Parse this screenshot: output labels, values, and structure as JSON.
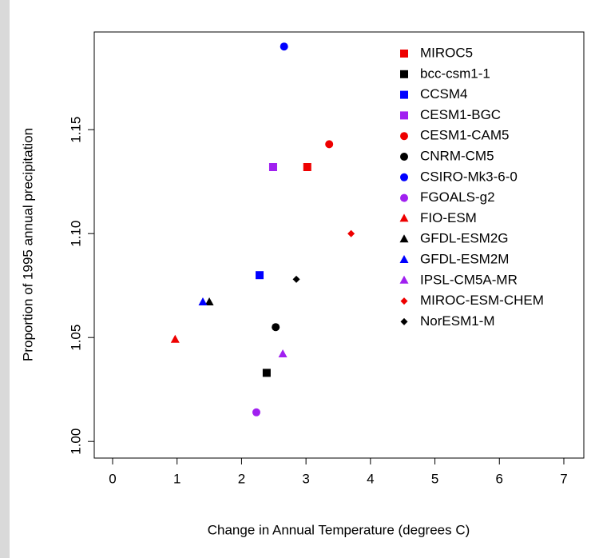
{
  "chart_data": {
    "type": "scatter",
    "x_label": "Change in Annual Temperature (degrees C)",
    "y_label": "Proportion of 1995 annual precipitation",
    "xlim": [
      -0.285,
      7.31
    ],
    "ylim": [
      0.992,
      1.197
    ],
    "xticks": [
      0,
      1,
      2,
      3,
      4,
      5,
      6,
      7
    ],
    "yticks": [
      {
        "value": 1,
        "label": "1.00"
      },
      1.05,
      {
        "value": 1.1,
        "label": "1.10"
      },
      1.15
    ],
    "legend": "top-right",
    "series": [
      {
        "name": "MIROC5",
        "color": "#ee0000",
        "marker": "square",
        "x": [
          3.02
        ],
        "values": [
          1.132
        ]
      },
      {
        "name": "bcc-csm1-1",
        "color": "#000000",
        "marker": "square",
        "x": [
          2.39
        ],
        "values": [
          1.033
        ]
      },
      {
        "name": "CCSM4",
        "color": "#0000ff",
        "marker": "square",
        "x": [
          2.28
        ],
        "values": [
          1.08
        ]
      },
      {
        "name": "CESM1-BGC",
        "color": "#a020f0",
        "marker": "square",
        "x": [
          2.49
        ],
        "values": [
          1.132
        ]
      },
      {
        "name": "CESM1-CAM5",
        "color": "#ee0000",
        "marker": "circle",
        "x": [
          3.36
        ],
        "values": [
          1.143
        ]
      },
      {
        "name": "CNRM-CM5",
        "color": "#000000",
        "marker": "circle",
        "x": [
          2.53
        ],
        "values": [
          1.055
        ]
      },
      {
        "name": "CSIRO-Mk3-6-0",
        "color": "#0000ff",
        "marker": "circle",
        "x": [
          2.66
        ],
        "values": [
          1.19
        ]
      },
      {
        "name": "FGOALS-g2",
        "color": "#a020f0",
        "marker": "circle",
        "x": [
          2.23
        ],
        "values": [
          1.014
        ]
      },
      {
        "name": "FIO-ESM",
        "color": "#ee0000",
        "marker": "triangle",
        "x": [
          0.97
        ],
        "values": [
          1.049
        ]
      },
      {
        "name": "GFDL-ESM2G",
        "color": "#000000",
        "marker": "triangle",
        "x": [
          1.5
        ],
        "values": [
          1.067
        ]
      },
      {
        "name": "GFDL-ESM2M",
        "color": "#0000ff",
        "marker": "triangle",
        "x": [
          1.4
        ],
        "values": [
          1.067
        ]
      },
      {
        "name": "IPSL-CM5A-MR",
        "color": "#a020f0",
        "marker": "triangle",
        "x": [
          2.64
        ],
        "values": [
          1.042
        ]
      },
      {
        "name": "MIROC-ESM-CHEM",
        "color": "#ee0000",
        "marker": "diamond",
        "x": [
          3.7
        ],
        "values": [
          1.1
        ]
      },
      {
        "name": "NorESM1-M",
        "color": "#000000",
        "marker": "diamond",
        "x": [
          2.85
        ],
        "values": [
          1.078
        ]
      }
    ]
  }
}
